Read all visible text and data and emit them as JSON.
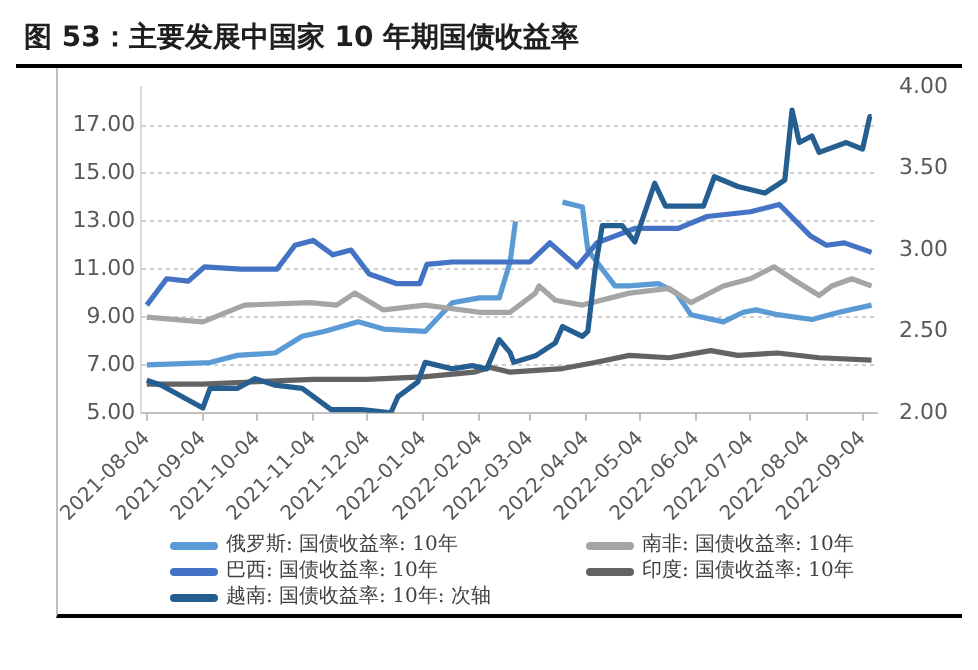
{
  "chart_data": {
    "type": "line",
    "title": "图 53：主要发展中国家 10 年期国债收益率",
    "xlim": [
      "2021-08-01",
      "2022-09-12"
    ],
    "xticks": [
      "2021-08-04",
      "2021-09-04",
      "2021-10-04",
      "2021-11-04",
      "2021-12-04",
      "2022-01-04",
      "2022-02-04",
      "2022-03-04",
      "2022-04-04",
      "2022-05-04",
      "2022-06-04",
      "2022-07-04",
      "2022-08-04",
      "2022-09-04"
    ],
    "ylim": [
      5,
      18.6
    ],
    "yticks": [
      {
        "value": 5,
        "label": "5.00"
      },
      {
        "value": 7,
        "label": "7.00"
      },
      {
        "value": 9,
        "label": "9.00"
      },
      {
        "value": 11,
        "label": "11.00"
      },
      {
        "value": 13,
        "label": "13.00"
      },
      {
        "value": 15,
        "label": "15.00"
      },
      {
        "value": 17,
        "label": "17.00"
      }
    ],
    "y2lim": [
      2,
      4
    ],
    "y2ticks": [
      {
        "value": 2,
        "label": "2.00"
      },
      {
        "value": 2.5,
        "label": "2.50"
      },
      {
        "value": 3,
        "label": "3.00"
      },
      {
        "value": 3.5,
        "label": "3.50"
      },
      {
        "value": 4,
        "label": "4.00"
      }
    ],
    "grid": "y",
    "legend": "bottom",
    "marker": "none",
    "line_style": "solid",
    "series": [
      {
        "name": "俄罗斯: 国债收益率: 10年",
        "color": "#5b9bd5",
        "x": [
          "2021-08-04",
          "2021-09-08",
          "2021-09-23",
          "2021-10-14",
          "2021-10-29",
          "2021-11-10",
          "2021-11-29",
          "2021-12-13",
          "2022-01-05",
          "2022-01-20",
          "2022-02-04",
          "2022-02-15",
          "2022-02-21",
          "2022-02-24",
          "2022-02-26",
          "2022-03-18",
          "2022-03-22",
          "2022-04-02",
          "2022-04-05",
          "2022-04-20",
          "2022-04-28",
          "2022-05-14",
          "2022-05-24",
          "2022-06-01",
          "2022-06-19",
          "2022-06-30",
          "2022-07-07",
          "2022-07-19",
          "2022-08-07",
          "2022-08-22",
          "2022-09-09"
        ],
        "values": [
          7.0,
          7.1,
          7.4,
          7.5,
          8.2,
          8.4,
          8.8,
          8.5,
          8.4,
          9.6,
          9.8,
          9.8,
          11.3,
          13.0,
          null,
          null,
          13.8,
          13.6,
          11.8,
          10.3,
          10.3,
          10.4,
          10.0,
          9.1,
          8.8,
          9.2,
          9.3,
          9.1,
          8.9,
          9.2,
          9.5
        ]
      },
      {
        "name": "南非: 国债收益率: 10年",
        "color": "#a5a5a5",
        "x": [
          "2021-08-04",
          "2021-09-04",
          "2021-09-27",
          "2021-11-02",
          "2021-11-17",
          "2021-11-27",
          "2021-12-13",
          "2022-01-05",
          "2022-02-04",
          "2022-02-21",
          "2022-03-07",
          "2022-03-09",
          "2022-03-18",
          "2022-04-02",
          "2022-04-28",
          "2022-05-20",
          "2022-06-01",
          "2022-06-19",
          "2022-07-04",
          "2022-07-17",
          "2022-07-27",
          "2022-08-11",
          "2022-08-18",
          "2022-08-29",
          "2022-09-09"
        ],
        "values": [
          9.0,
          8.8,
          9.5,
          9.6,
          9.5,
          10.0,
          9.3,
          9.5,
          9.2,
          9.2,
          10.0,
          10.3,
          9.7,
          9.5,
          10.0,
          10.2,
          9.6,
          10.3,
          10.6,
          11.1,
          10.6,
          9.9,
          10.3,
          10.6,
          10.3
        ]
      },
      {
        "name": "巴西: 国债收益率: 10年",
        "color": "#4472c4",
        "x": [
          "2021-08-04",
          "2021-08-15",
          "2021-08-27",
          "2021-09-05",
          "2021-09-25",
          "2021-10-15",
          "2021-10-25",
          "2021-11-04",
          "2021-11-15",
          "2021-11-25",
          "2021-12-05",
          "2021-12-20",
          "2022-01-02",
          "2022-01-06",
          "2022-01-20",
          "2022-02-04",
          "2022-02-15",
          "2022-03-04",
          "2022-03-15",
          "2022-03-30",
          "2022-04-10",
          "2022-05-01",
          "2022-05-25",
          "2022-06-10",
          "2022-07-04",
          "2022-07-20",
          "2022-08-06",
          "2022-08-15",
          "2022-08-25",
          "2022-09-09"
        ],
        "values": [
          9.5,
          10.6,
          10.5,
          11.1,
          11.0,
          11.0,
          12.0,
          12.2,
          11.6,
          11.8,
          10.8,
          10.4,
          10.4,
          11.2,
          11.3,
          11.3,
          11.3,
          11.3,
          12.1,
          11.1,
          12.1,
          12.7,
          12.7,
          13.2,
          13.4,
          13.7,
          12.4,
          12.0,
          12.1,
          11.7
        ]
      },
      {
        "name": "印度: 国债收益率: 10年",
        "color": "#636363",
        "x": [
          "2021-08-04",
          "2021-09-04",
          "2021-10-04",
          "2021-11-04",
          "2021-12-04",
          "2022-01-04",
          "2022-02-01",
          "2022-02-10",
          "2022-02-21",
          "2022-03-22",
          "2022-04-09",
          "2022-04-28",
          "2022-05-20",
          "2022-06-12",
          "2022-06-27",
          "2022-07-19",
          "2022-08-11",
          "2022-09-09"
        ],
        "values": [
          6.2,
          6.2,
          6.3,
          6.4,
          6.4,
          6.5,
          6.7,
          6.9,
          6.7,
          6.85,
          7.1,
          7.4,
          7.3,
          7.6,
          7.4,
          7.5,
          7.3,
          7.2
        ]
      },
      {
        "name": "越南: 国债收益率: 10年: 次轴",
        "color": "#255e91",
        "axis": "y2",
        "x": [
          "2021-08-04",
          "2021-08-12",
          "2021-09-04",
          "2021-09-08",
          "2021-09-23",
          "2021-10-03",
          "2021-10-14",
          "2021-10-29",
          "2021-11-14",
          "2021-12-01",
          "2021-12-17",
          "2021-12-21",
          "2022-01-01",
          "2022-01-05",
          "2022-01-20",
          "2022-01-31",
          "2022-02-08",
          "2022-02-15",
          "2022-02-21",
          "2022-02-23",
          "2022-03-07",
          "2022-03-18",
          "2022-03-22",
          "2022-04-02",
          "2022-04-05",
          "2022-04-09",
          "2022-04-13",
          "2022-04-24",
          "2022-05-01",
          "2022-05-12",
          "2022-05-18",
          "2022-06-08",
          "2022-06-14",
          "2022-06-27",
          "2022-07-12",
          "2022-07-23",
          "2022-07-27",
          "2022-07-31",
          "2022-08-07",
          "2022-08-11",
          "2022-08-26",
          "2022-09-04",
          "2022-09-08",
          "2022-09-09"
        ],
        "values": [
          2.2,
          2.17,
          2.03,
          2.15,
          2.15,
          2.21,
          2.17,
          2.15,
          2.02,
          2.02,
          2.0,
          2.1,
          2.19,
          2.31,
          2.27,
          2.29,
          2.27,
          2.45,
          2.37,
          2.31,
          2.35,
          2.43,
          2.53,
          2.47,
          2.5,
          2.88,
          3.15,
          3.15,
          3.05,
          3.41,
          3.27,
          3.27,
          3.45,
          3.39,
          3.35,
          3.43,
          3.86,
          3.66,
          3.7,
          3.6,
          3.66,
          3.62,
          3.82,
          3.82
        ]
      }
    ]
  }
}
